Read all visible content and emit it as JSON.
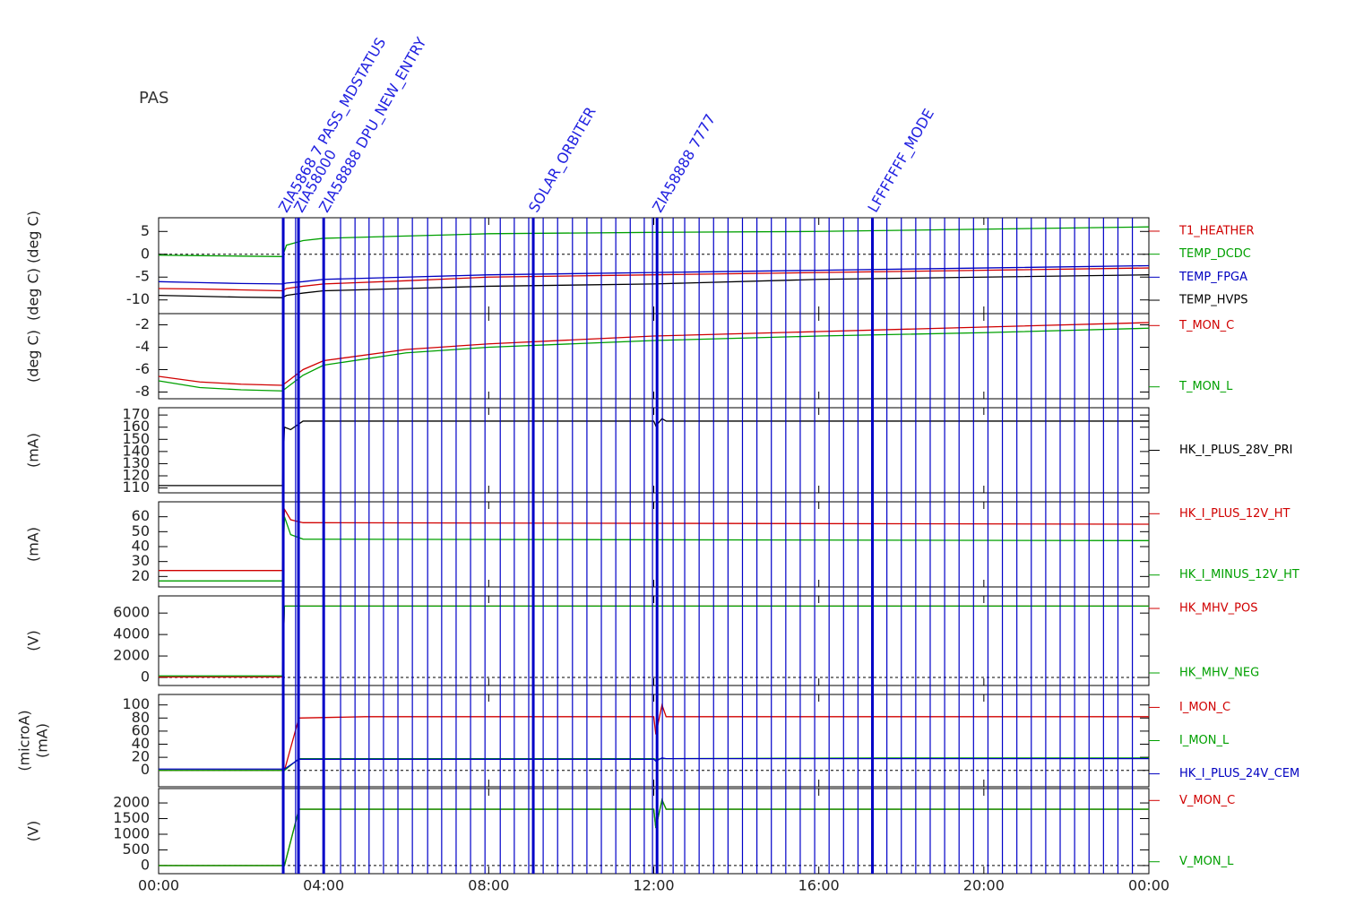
{
  "title": "PAS",
  "time_axis": {
    "xlim": [
      0,
      24
    ],
    "xticks": [
      {
        "value": 0,
        "label": "00:00"
      },
      {
        "value": 4,
        "label": "04:00"
      },
      {
        "value": 8,
        "label": "08:00"
      },
      {
        "value": 12,
        "label": "12:00"
      },
      {
        "value": 16,
        "label": "16:00"
      },
      {
        "value": 20,
        "label": "20:00"
      },
      {
        "value": 24,
        "label": "00:00"
      }
    ]
  },
  "events": [
    3.02,
    3.32,
    3.39,
    4.0,
    4.41,
    4.76,
    5.1,
    5.45,
    5.8,
    6.15,
    6.52,
    6.86,
    7.21,
    7.56,
    7.91,
    8.28,
    8.62,
    8.97,
    9.08,
    9.32,
    9.67,
    10.03,
    10.38,
    10.73,
    11.08,
    11.43,
    11.77,
    11.97,
    12.08,
    12.21,
    12.47,
    12.75,
    13.1,
    13.45,
    13.8,
    14.15,
    14.5,
    14.85,
    15.2,
    15.55,
    15.9,
    16.25,
    16.6,
    16.95,
    17.3,
    17.65,
    18,
    18.35,
    18.7,
    19.05,
    19.4,
    19.75,
    20.1,
    20.45,
    20.8,
    21.15,
    21.5,
    21.85,
    22.2,
    22.55,
    22.9,
    23.25,
    23.6
  ],
  "event_labels": [
    {
      "x": 3.02,
      "label": "ZIA5868 7 PASS_MDSTATUS"
    },
    {
      "x": 3.39,
      "label": "ZIA58000"
    },
    {
      "x": 4.0,
      "label": "ZIA58888 DPU_NEW_ENTRY"
    },
    {
      "x": 9.08,
      "label": "SOLAR_ORBITER"
    },
    {
      "x": 12.08,
      "label": "ZIA58888 7777"
    },
    {
      "x": 17.3,
      "label": "LFFFFFFF_MODE"
    }
  ],
  "chart_data": [
    {
      "type": "line",
      "ylabel": "(deg C)  (deg C)",
      "ylim": [
        -13,
        8
      ],
      "yticks": [
        -10,
        -5,
        0,
        5
      ],
      "hline": 0,
      "x": [
        0,
        1,
        2,
        3,
        3.1,
        3.5,
        4,
        6,
        8,
        12,
        16,
        20,
        24
      ],
      "series": [
        {
          "name": "T1_HEATHER",
          "color": "#d00000",
          "values": [
            -7.5,
            -7.6,
            -7.8,
            -8,
            -7.5,
            -7,
            -6.5,
            -5.8,
            -5,
            -4.5,
            -4,
            -3.5,
            -3
          ]
        },
        {
          "name": "TEMP_DCDC",
          "color": "#00a000",
          "values": [
            -0.2,
            -0.3,
            -0.4,
            -0.5,
            2,
            3,
            3.5,
            4,
            4.5,
            4.8,
            5,
            5.5,
            6
          ]
        },
        {
          "name": "TEMP_FPGA",
          "color": "#0000c0",
          "values": [
            -6,
            -6.2,
            -6.4,
            -6.5,
            -6.3,
            -6,
            -5.5,
            -5,
            -4.5,
            -4,
            -3.5,
            -3,
            -2.5
          ]
        },
        {
          "name": "TEMP_HVPS",
          "color": "#000000",
          "values": [
            -9,
            -9.2,
            -9.4,
            -9.5,
            -9,
            -8.5,
            -8,
            -7.5,
            -7,
            -6.5,
            -5.5,
            -5,
            -4.5
          ]
        }
      ]
    },
    {
      "type": "line",
      "ylabel": "(deg C)",
      "ylim": [
        -8.6,
        -1
      ],
      "yticks": [
        -8,
        -6,
        -4,
        -2
      ],
      "x": [
        0,
        1,
        2,
        3,
        3.5,
        4,
        6,
        8,
        12,
        16,
        20,
        24
      ],
      "series": [
        {
          "name": "T_MON_C",
          "color": "#d00000",
          "values": [
            -6.6,
            -7.1,
            -7.3,
            -7.4,
            -6,
            -5.2,
            -4.2,
            -3.7,
            -3,
            -2.6,
            -2.2,
            -1.8
          ]
        },
        {
          "name": "T_MON_L",
          "color": "#00a000",
          "values": [
            -7,
            -7.6,
            -7.8,
            -7.9,
            -6.5,
            -5.6,
            -4.5,
            -4,
            -3.4,
            -3,
            -2.7,
            -2.3
          ]
        }
      ]
    },
    {
      "type": "line",
      "ylabel": "(mA)",
      "ylim": [
        106,
        176
      ],
      "yticks": [
        110,
        120,
        130,
        140,
        150,
        160,
        170
      ],
      "x": [
        0,
        3,
        3.05,
        3.2,
        3.5,
        12,
        12.05,
        12.2,
        12.3,
        24
      ],
      "series": [
        {
          "name": "HK_I_PLUS_28V_PRI",
          "color": "#000000",
          "values": [
            112,
            112,
            160,
            158,
            165,
            165,
            161,
            167,
            165,
            165
          ]
        }
      ]
    },
    {
      "type": "line",
      "ylabel": "(mA)",
      "ylim": [
        13,
        70
      ],
      "yticks": [
        20,
        30,
        40,
        50,
        60
      ],
      "x": [
        0,
        3,
        3.05,
        3.2,
        3.5,
        24
      ],
      "series": [
        {
          "name": "HK_I_PLUS_12V_HT",
          "color": "#d00000",
          "values": [
            24,
            24,
            65,
            58,
            56,
            55
          ]
        },
        {
          "name": "HK_I_MINUS_12V_HT",
          "color": "#00a000",
          "values": [
            17,
            17,
            60,
            48,
            45,
            44
          ]
        }
      ]
    },
    {
      "type": "line",
      "ylabel": "(V)",
      "ylim": [
        -750,
        7600
      ],
      "yticks": [
        0,
        2000,
        4000,
        6000
      ],
      "hline": 0,
      "x": [
        0,
        3,
        3.05,
        24
      ],
      "series": [
        {
          "name": "HK_MHV_POS",
          "color": "#d00000",
          "values": [
            50,
            50,
            6650,
            6650
          ]
        },
        {
          "name": "HK_MHV_NEG",
          "color": "#00a000",
          "values": [
            150,
            150,
            6650,
            6650
          ]
        }
      ]
    },
    {
      "type": "line",
      "ylabel": [
        "(microA)",
        "(mA)"
      ],
      "ylim": [
        -25,
        116
      ],
      "yticks": [
        0,
        20,
        40,
        60,
        80,
        100
      ],
      "hline": 0,
      "x": [
        0,
        3,
        3.05,
        3.4,
        5,
        12,
        12.05,
        12.2,
        12.3,
        17.5,
        24
      ],
      "series": [
        {
          "name": "I_MON_C",
          "color": "#d00000",
          "values": [
            0,
            0,
            0,
            80,
            82,
            82,
            55,
            100,
            82,
            82,
            82
          ]
        },
        {
          "name": "I_MON_L",
          "color": "#00a000",
          "values": [
            0,
            0,
            0,
            18,
            18,
            18,
            17,
            18,
            18,
            19,
            19
          ]
        },
        {
          "name": "HK_I_PLUS_24V_CEM",
          "color": "#0000c0",
          "values": [
            2,
            2,
            2,
            17,
            17,
            17,
            14,
            19,
            18,
            18,
            18
          ]
        }
      ]
    },
    {
      "type": "line",
      "ylabel": "(V)",
      "ylim": [
        -260,
        2460
      ],
      "yticks": [
        0,
        500,
        1000,
        1500,
        2000
      ],
      "hline": 0,
      "x": [
        0,
        3,
        3.05,
        3.4,
        12,
        12.05,
        12.2,
        12.3,
        24
      ],
      "series": [
        {
          "name": "V_MON_C",
          "color": "#d00000",
          "values": [
            0,
            0,
            0,
            1800,
            1800,
            1200,
            2100,
            1800,
            1800
          ]
        },
        {
          "name": "V_MON_L",
          "color": "#00a000",
          "values": [
            0,
            0,
            0,
            1800,
            1800,
            1200,
            2100,
            1800,
            1800
          ]
        }
      ]
    }
  ]
}
